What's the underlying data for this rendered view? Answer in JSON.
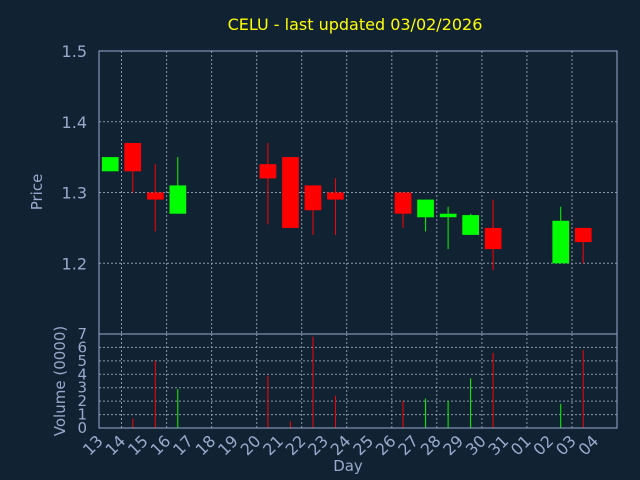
{
  "title": "CELU - last updated 03/02/2026",
  "chart_data": [
    {
      "type": "candlestick",
      "ylabel": "Price",
      "ylim": [
        1.1,
        1.5
      ],
      "yticks": [
        "1.2",
        "1.3",
        "1.4",
        "1.5"
      ],
      "grid": true,
      "colors": {
        "up": "#00ff00",
        "down": "#ff0000",
        "grid": "#8899aa",
        "frame": "#99aacc"
      },
      "candles": [
        {
          "day": "13",
          "open": 1.33,
          "high": 1.35,
          "low": 1.33,
          "close": 1.35
        },
        {
          "day": "14",
          "open": 1.37,
          "high": 1.37,
          "low": 1.3,
          "close": 1.33
        },
        {
          "day": "15",
          "open": 1.3,
          "high": 1.34,
          "low": 1.245,
          "close": 1.29
        },
        {
          "day": "16",
          "open": 1.27,
          "high": 1.35,
          "low": 1.27,
          "close": 1.31
        },
        {
          "day": "20",
          "open": 1.34,
          "high": 1.37,
          "low": 1.255,
          "close": 1.32
        },
        {
          "day": "21",
          "open": 1.35,
          "high": 1.35,
          "low": 1.25,
          "close": 1.25
        },
        {
          "day": "22",
          "open": 1.31,
          "high": 1.31,
          "low": 1.24,
          "close": 1.275
        },
        {
          "day": "23",
          "open": 1.3,
          "high": 1.32,
          "low": 1.24,
          "close": 1.29
        },
        {
          "day": "26",
          "open": 1.3,
          "high": 1.3,
          "low": 1.25,
          "close": 1.27
        },
        {
          "day": "27",
          "open": 1.265,
          "high": 1.29,
          "low": 1.245,
          "close": 1.29
        },
        {
          "day": "28",
          "open": 1.265,
          "high": 1.28,
          "low": 1.22,
          "close": 1.27
        },
        {
          "day": "29",
          "open": 1.24,
          "high": 1.27,
          "low": 1.24,
          "close": 1.268
        },
        {
          "day": "30",
          "open": 1.25,
          "high": 1.29,
          "low": 1.19,
          "close": 1.22
        },
        {
          "day": "02",
          "open": 1.2,
          "high": 1.28,
          "low": 1.2,
          "close": 1.26
        },
        {
          "day": "03",
          "open": 1.25,
          "high": 1.25,
          "low": 1.2,
          "close": 1.23
        }
      ]
    },
    {
      "type": "bar",
      "ylabel": "Volume (0000)",
      "xlabel": "Day",
      "ylim": [
        0,
        7
      ],
      "yticks": [
        "0",
        "1",
        "2",
        "3",
        "4",
        "5",
        "6",
        "7"
      ],
      "categories": [
        "13",
        "14",
        "15",
        "16",
        "17",
        "18",
        "19",
        "20",
        "21",
        "22",
        "23",
        "24",
        "25",
        "26",
        "27",
        "28",
        "29",
        "30",
        "31",
        "01",
        "02",
        "03",
        "04"
      ],
      "values": [
        0,
        0.7,
        5.0,
        2.9,
        0,
        0,
        0,
        3.9,
        0.5,
        6.8,
        2.4,
        0,
        0,
        2.0,
        2.2,
        2.0,
        3.7,
        5.6,
        0,
        0,
        1.8,
        5.8,
        0
      ],
      "bar_colors": [
        "",
        "#ff0000",
        "#ff0000",
        "#00ff00",
        "",
        "",
        "",
        "#ff0000",
        "#ff0000",
        "#ff0000",
        "#ff0000",
        "",
        "",
        "#ff0000",
        "#00ff00",
        "#00ff00",
        "#00ff00",
        "#ff0000",
        "",
        "",
        "#00ff00",
        "#ff0000",
        ""
      ]
    }
  ]
}
